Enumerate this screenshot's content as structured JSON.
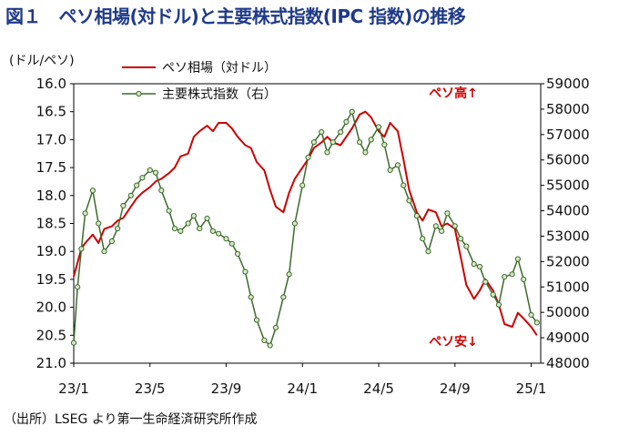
{
  "title": "図１　ペソ相場(対ドル)と主要株式指数(IPC 指数)の推移",
  "source": "（出所）LSEG より第一生命経済研究所作成",
  "colors": {
    "title": "#1f3a8a",
    "peso": "#cc0000",
    "ipc": "#3a6b2a",
    "ipc_marker_fill": "#d9e8c8",
    "annotation": "#d10000"
  },
  "chart_data": {
    "type": "line",
    "left_axis_unit": "(ドル/ペソ)",
    "left_ylim": [
      16.0,
      21.0
    ],
    "left_inverted": true,
    "left_ticks": [
      "16.0",
      "16.5",
      "17.0",
      "17.5",
      "18.0",
      "18.5",
      "19.0",
      "19.5",
      "20.0",
      "20.5",
      "21.0"
    ],
    "right_ylim": [
      48000,
      59000
    ],
    "right_ticks": [
      "59000",
      "58000",
      "57000",
      "56000",
      "55000",
      "54000",
      "53000",
      "52000",
      "51000",
      "50000",
      "49000",
      "48000"
    ],
    "x_ticks": [
      "23/1",
      "23/5",
      "23/9",
      "24/1",
      "24/5",
      "24/9",
      "25/1"
    ],
    "grid": false,
    "legend_position": "top-left",
    "annotations": {
      "top": "ペソ高↑",
      "bottom": "ペソ安↓"
    },
    "series": [
      {
        "name": "ペソ相場（対ドル）",
        "axis": "left",
        "x": [
          0,
          0.2,
          0.4,
          0.6,
          1,
          1.3,
          1.6,
          2,
          2.3,
          2.6,
          3,
          3.3,
          3.6,
          4,
          4.3,
          4.6,
          5,
          5.3,
          5.6,
          6,
          6.3,
          6.6,
          7,
          7.3,
          7.6,
          8,
          8.3,
          8.6,
          9,
          9.3,
          9.6,
          10,
          10.3,
          10.6,
          11,
          11.3,
          11.6,
          12,
          12.3,
          12.6,
          13,
          13.3,
          13.6,
          14,
          14.3,
          14.6,
          15,
          15.3,
          15.6,
          16,
          16.3,
          16.6,
          17,
          17.3,
          17.6,
          18,
          18.3,
          18.6,
          19,
          19.3,
          19.6,
          20,
          20.3,
          20.6,
          21,
          21.3,
          21.6,
          22,
          22.3,
          22.6,
          23,
          23.3,
          23.6,
          24,
          24.3
        ],
        "values": [
          19.45,
          19.2,
          18.95,
          18.85,
          18.7,
          18.85,
          18.6,
          18.55,
          18.45,
          18.4,
          18.2,
          18.05,
          17.95,
          17.85,
          17.75,
          17.7,
          17.6,
          17.5,
          17.3,
          17.25,
          16.95,
          16.85,
          16.75,
          16.85,
          16.7,
          16.7,
          16.8,
          16.95,
          17.1,
          17.15,
          17.4,
          17.55,
          17.9,
          18.2,
          18.3,
          17.95,
          17.7,
          17.5,
          17.35,
          17.15,
          17.05,
          16.95,
          17.05,
          17.1,
          16.95,
          16.8,
          16.55,
          16.5,
          16.6,
          16.85,
          16.95,
          16.7,
          16.85,
          17.35,
          17.9,
          18.3,
          18.45,
          18.25,
          18.3,
          18.55,
          18.5,
          18.6,
          19.1,
          19.6,
          19.85,
          19.7,
          19.5,
          19.7,
          19.95,
          20.3,
          20.35,
          20.1,
          20.2,
          20.35,
          20.5
        ]
      },
      {
        "name": "主要株式指数（右）",
        "axis": "right",
        "x": [
          0,
          0.2,
          0.4,
          0.6,
          1,
          1.3,
          1.6,
          2,
          2.3,
          2.6,
          3,
          3.3,
          3.6,
          4,
          4.3,
          4.6,
          5,
          5.3,
          5.6,
          6,
          6.3,
          6.6,
          7,
          7.3,
          7.6,
          8,
          8.3,
          8.6,
          9,
          9.3,
          9.6,
          10,
          10.3,
          10.6,
          11,
          11.3,
          11.6,
          12,
          12.3,
          12.6,
          13,
          13.3,
          13.6,
          14,
          14.3,
          14.6,
          15,
          15.3,
          15.6,
          16,
          16.3,
          16.6,
          17,
          17.3,
          17.6,
          18,
          18.3,
          18.6,
          19,
          19.3,
          19.6,
          20,
          20.3,
          20.6,
          21,
          21.3,
          21.6,
          22,
          22.3,
          22.6,
          23,
          23.3,
          23.6,
          24,
          24.3
        ],
        "values": [
          48800,
          51000,
          52500,
          53900,
          54800,
          53500,
          52400,
          52800,
          53300,
          54200,
          54600,
          55000,
          55300,
          55600,
          55500,
          54800,
          54000,
          53300,
          53200,
          53500,
          53800,
          53300,
          53700,
          53200,
          53100,
          52900,
          52700,
          52300,
          51600,
          50600,
          49700,
          48900,
          48700,
          49400,
          50600,
          51500,
          53500,
          55000,
          56100,
          56700,
          57100,
          56300,
          56700,
          57100,
          57500,
          57900,
          56700,
          56300,
          56800,
          57300,
          56600,
          55600,
          55800,
          55000,
          54400,
          53800,
          52900,
          52400,
          53400,
          53200,
          53900,
          53400,
          52900,
          52600,
          51900,
          51800,
          51200,
          50700,
          50300,
          51400,
          51500,
          52100,
          51300,
          49900,
          49600
        ]
      }
    ]
  }
}
